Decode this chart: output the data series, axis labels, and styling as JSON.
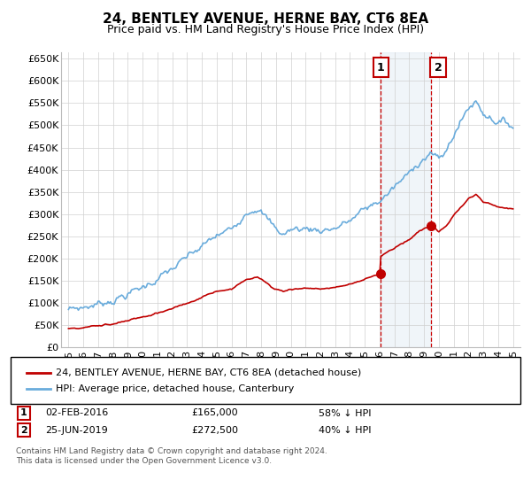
{
  "title": "24, BENTLEY AVENUE, HERNE BAY, CT6 8EA",
  "subtitle": "Price paid vs. HM Land Registry's House Price Index (HPI)",
  "legend_line1": "24, BENTLEY AVENUE, HERNE BAY, CT6 8EA (detached house)",
  "legend_line2": "HPI: Average price, detached house, Canterbury",
  "annotation1_label": "1",
  "annotation1_date": "02-FEB-2016",
  "annotation1_price": "£165,000",
  "annotation1_note": "58% ↓ HPI",
  "annotation2_label": "2",
  "annotation2_date": "25-JUN-2019",
  "annotation2_price": "£272,500",
  "annotation2_note": "40% ↓ HPI",
  "footer": "Contains HM Land Registry data © Crown copyright and database right 2024.\nThis data is licensed under the Open Government Licence v3.0.",
  "hpi_color": "#6aacdc",
  "price_color": "#c00000",
  "annotation_color": "#c00000",
  "vline_color": "#cc0000",
  "shade_color": "#d6e4f0",
  "yticks": [
    0,
    50000,
    100000,
    150000,
    200000,
    250000,
    300000,
    350000,
    400000,
    450000,
    500000,
    550000,
    600000,
    650000
  ],
  "sale1_year": 2016.083,
  "sale2_year": 2019.458,
  "sale1_price": 165000,
  "sale2_price": 272500
}
